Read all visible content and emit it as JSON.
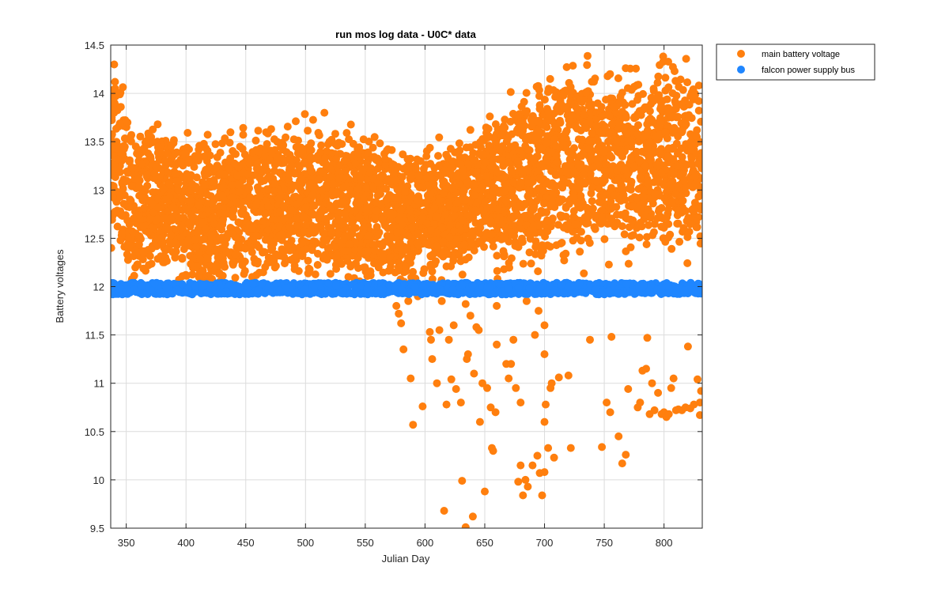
{
  "chart_data": {
    "type": "scatter",
    "title": "run mos log data - U0C* data",
    "xlabel": "Julian Day",
    "ylabel": "Battery voltages",
    "xlim": [
      337,
      832
    ],
    "ylim": [
      9.5,
      14.5
    ],
    "xticks": [
      350,
      400,
      450,
      500,
      550,
      600,
      650,
      700,
      750,
      800
    ],
    "yticks": [
      9.5,
      10,
      10.5,
      11,
      11.5,
      12,
      12.5,
      13,
      13.5,
      14,
      14.5
    ],
    "xtick_labels": [
      "350",
      "400",
      "450",
      "500",
      "550",
      "600",
      "650",
      "700",
      "750",
      "800"
    ],
    "ytick_labels": [
      "9.5",
      "10",
      "10.5",
      "11",
      "11.5",
      "12",
      "12.5",
      "13",
      "13.5",
      "14",
      "14.5"
    ],
    "grid": true,
    "legend_position": "outside-top-right",
    "series": [
      {
        "name": "main battery voltage",
        "color": "#FF7F0E",
        "trend_x": [
          337,
          340,
          345,
          355,
          365,
          380,
          400,
          420,
          440,
          460,
          480,
          500,
          520,
          540,
          560,
          580,
          600,
          620,
          640,
          660,
          680,
          700,
          720,
          740,
          760,
          780,
          800,
          820,
          832
        ],
        "trend_y": [
          13.2,
          13.5,
          13.3,
          12.8,
          12.9,
          12.9,
          12.8,
          12.7,
          12.8,
          12.8,
          12.9,
          12.9,
          12.9,
          12.9,
          12.8,
          12.7,
          12.8,
          12.8,
          12.9,
          13.0,
          13.1,
          13.2,
          13.3,
          13.3,
          13.3,
          13.3,
          13.3,
          13.3,
          13.3
        ],
        "spread_y": [
          0.9,
          0.7,
          0.7,
          0.6,
          0.6,
          0.6,
          0.6,
          0.6,
          0.6,
          0.6,
          0.6,
          0.65,
          0.65,
          0.6,
          0.6,
          0.55,
          0.5,
          0.5,
          0.55,
          0.6,
          0.7,
          0.7,
          0.7,
          0.7,
          0.7,
          0.7,
          0.7,
          0.7,
          0.7
        ],
        "low_points": [
          [
            576,
            11.8
          ],
          [
            578,
            11.72
          ],
          [
            580,
            11.62
          ],
          [
            582,
            11.35
          ],
          [
            586,
            11.85
          ],
          [
            588,
            11.05
          ],
          [
            590,
            10.57
          ],
          [
            594,
            11.9
          ],
          [
            598,
            10.76
          ],
          [
            604,
            11.53
          ],
          [
            605,
            11.45
          ],
          [
            606,
            11.25
          ],
          [
            610,
            11.0
          ],
          [
            612,
            11.55
          ],
          [
            614,
            11.85
          ],
          [
            616,
            9.68
          ],
          [
            618,
            10.78
          ],
          [
            620,
            11.45
          ],
          [
            622,
            11.04
          ],
          [
            624,
            11.6
          ],
          [
            626,
            10.94
          ],
          [
            630,
            10.8
          ],
          [
            631,
            9.99
          ],
          [
            634,
            9.51
          ],
          [
            634,
            11.82
          ],
          [
            635,
            11.25
          ],
          [
            636,
            11.3
          ],
          [
            638,
            11.7
          ],
          [
            640,
            9.62
          ],
          [
            641,
            11.1
          ],
          [
            643,
            11.58
          ],
          [
            645,
            11.55
          ],
          [
            646,
            10.6
          ],
          [
            648,
            11.0
          ],
          [
            650,
            9.88
          ],
          [
            652,
            10.95
          ],
          [
            655,
            10.75
          ],
          [
            656,
            10.33
          ],
          [
            657,
            10.3
          ],
          [
            659,
            10.7
          ],
          [
            660,
            11.4
          ],
          [
            668,
            11.2
          ],
          [
            670,
            11.05
          ],
          [
            672,
            11.2
          ],
          [
            674,
            11.45
          ],
          [
            676,
            10.95
          ],
          [
            678,
            9.98
          ],
          [
            680,
            10.15
          ],
          [
            680,
            10.8
          ],
          [
            682,
            9.84
          ],
          [
            684,
            10.0
          ],
          [
            685,
            11.85
          ],
          [
            686,
            9.93
          ],
          [
            690,
            10.15
          ],
          [
            692,
            11.5
          ],
          [
            694,
            10.25
          ],
          [
            696,
            10.07
          ],
          [
            698,
            9.84
          ],
          [
            700,
            10.08
          ],
          [
            700,
            10.6
          ],
          [
            701,
            10.78
          ],
          [
            703,
            10.33
          ],
          [
            705,
            10.95
          ],
          [
            706,
            11.0
          ],
          [
            708,
            10.23
          ],
          [
            712,
            11.06
          ],
          [
            720,
            11.08
          ],
          [
            722,
            10.33
          ],
          [
            738,
            11.45
          ],
          [
            748,
            10.34
          ],
          [
            752,
            10.8
          ],
          [
            755,
            10.7
          ],
          [
            756,
            11.48
          ],
          [
            762,
            10.45
          ],
          [
            765,
            10.17
          ],
          [
            768,
            10.26
          ],
          [
            770,
            10.94
          ],
          [
            778,
            10.75
          ],
          [
            780,
            10.8
          ],
          [
            782,
            11.13
          ],
          [
            785,
            11.15
          ],
          [
            786,
            11.47
          ],
          [
            788,
            10.68
          ],
          [
            790,
            11.0
          ],
          [
            792,
            10.72
          ],
          [
            795,
            10.9
          ],
          [
            798,
            10.68
          ],
          [
            800,
            10.7
          ],
          [
            802,
            10.65
          ],
          [
            804,
            10.68
          ],
          [
            806,
            10.95
          ],
          [
            808,
            11.05
          ],
          [
            810,
            10.72
          ],
          [
            812,
            10.73
          ],
          [
            815,
            10.72
          ],
          [
            818,
            10.75
          ],
          [
            820,
            11.38
          ],
          [
            822,
            10.74
          ],
          [
            825,
            10.78
          ],
          [
            828,
            11.04
          ],
          [
            830,
            10.8
          ],
          [
            830,
            10.67
          ],
          [
            831,
            10.92
          ],
          [
            700,
            11.3
          ],
          [
            700,
            11.6
          ],
          [
            695,
            11.75
          ],
          [
            660,
            11.8
          ]
        ]
      },
      {
        "name": "falcon power supply bus",
        "color": "#1F86FF",
        "center_y": 11.98,
        "spread_y": 0.06
      }
    ]
  }
}
